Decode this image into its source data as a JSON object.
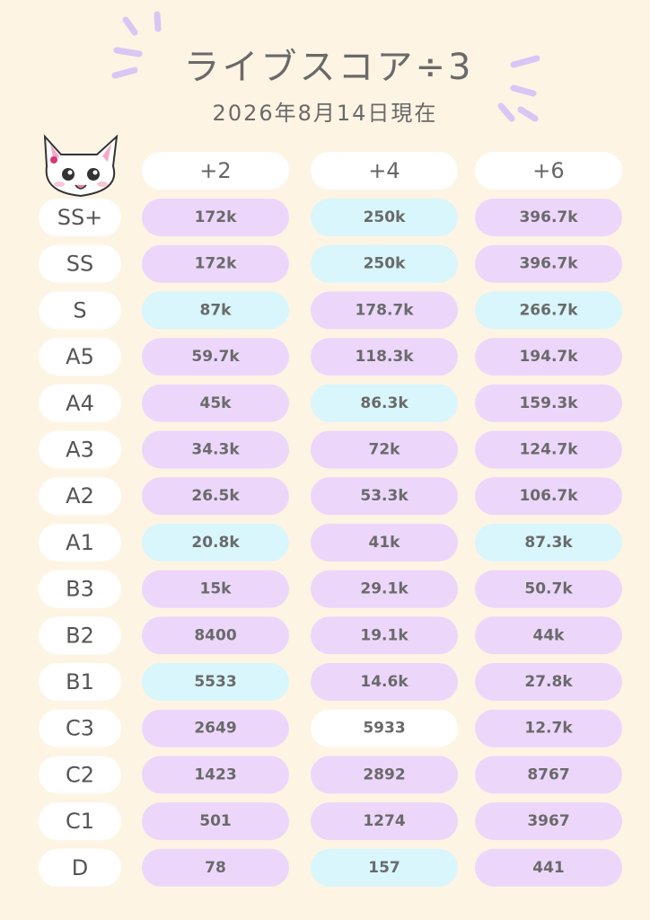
{
  "header": {
    "title": "ライブスコア÷3",
    "date": "2026年8月14日現在"
  },
  "table": {
    "columns": [
      "+2",
      "+4",
      "+6"
    ],
    "rows": [
      {
        "rank": "SS+",
        "cells": [
          "172k",
          "250k",
          "396.7k"
        ],
        "colors": [
          "#ecd7fb",
          "#d8f6fb",
          "#ecd7fb"
        ]
      },
      {
        "rank": "SS",
        "cells": [
          "172k",
          "250k",
          "396.7k"
        ],
        "colors": [
          "#ecd7fb",
          "#d8f6fb",
          "#ecd7fb"
        ]
      },
      {
        "rank": "S",
        "cells": [
          "87k",
          "178.7k",
          "266.7k"
        ],
        "colors": [
          "#d8f6fb",
          "#ecd7fb",
          "#d8f6fb"
        ]
      },
      {
        "rank": "A5",
        "cells": [
          "59.7k",
          "118.3k",
          "194.7k"
        ],
        "colors": [
          "#ecd7fb",
          "#ecd7fb",
          "#ecd7fb"
        ]
      },
      {
        "rank": "A4",
        "cells": [
          "45k",
          "86.3k",
          "159.3k"
        ],
        "colors": [
          "#ecd7fb",
          "#d8f6fb",
          "#ecd7fb"
        ]
      },
      {
        "rank": "A3",
        "cells": [
          "34.3k",
          "72k",
          "124.7k"
        ],
        "colors": [
          "#ecd7fb",
          "#ecd7fb",
          "#ecd7fb"
        ]
      },
      {
        "rank": "A2",
        "cells": [
          "26.5k",
          "53.3k",
          "106.7k"
        ],
        "colors": [
          "#ecd7fb",
          "#ecd7fb",
          "#ecd7fb"
        ]
      },
      {
        "rank": "A1",
        "cells": [
          "20.8k",
          "41k",
          "87.3k"
        ],
        "colors": [
          "#d8f6fb",
          "#ecd7fb",
          "#d8f6fb"
        ]
      },
      {
        "rank": "B3",
        "cells": [
          "15k",
          "29.1k",
          "50.7k"
        ],
        "colors": [
          "#ecd7fb",
          "#ecd7fb",
          "#ecd7fb"
        ]
      },
      {
        "rank": "B2",
        "cells": [
          "8400",
          "19.1k",
          "44k"
        ],
        "colors": [
          "#ecd7fb",
          "#ecd7fb",
          "#ecd7fb"
        ]
      },
      {
        "rank": "B1",
        "cells": [
          "5533",
          "14.6k",
          "27.8k"
        ],
        "colors": [
          "#d8f6fb",
          "#ecd7fb",
          "#ecd7fb"
        ]
      },
      {
        "rank": "C3",
        "cells": [
          "2649",
          "5933",
          "12.7k"
        ],
        "colors": [
          "#ecd7fb",
          "#ffffff",
          "#ecd7fb"
        ]
      },
      {
        "rank": "C2",
        "cells": [
          "1423",
          "2892",
          "8767"
        ],
        "colors": [
          "#ecd7fb",
          "#ecd7fb",
          "#ecd7fb"
        ]
      },
      {
        "rank": "C1",
        "cells": [
          "501",
          "1274",
          "3967"
        ],
        "colors": [
          "#ecd7fb",
          "#ecd7fb",
          "#ecd7fb"
        ]
      },
      {
        "rank": "D",
        "cells": [
          "78",
          "157",
          "441"
        ],
        "colors": [
          "#ecd7fb",
          "#d8f6fb",
          "#ecd7fb"
        ]
      }
    ]
  }
}
